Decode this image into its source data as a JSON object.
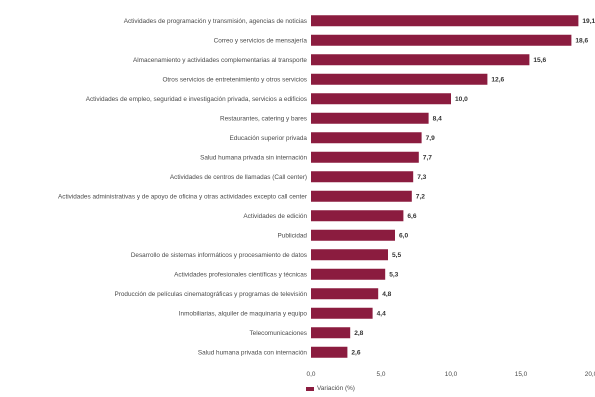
{
  "chart_data": {
    "type": "bar",
    "orientation": "horizontal",
    "categories": [
      "Actividades de programación y transmisión,  agencias de noticias",
      "Correo y servicios de mensajería",
      "Almacenamiento y actividades complementarias al transporte",
      "Otros servicios de entretenimiento y otros servicios",
      "Actividades de empleo, seguridad e investigación privada, servicios a edificios",
      "Restaurantes, catering y bares",
      "Educación superior privada",
      "Salud humana privada sin internación",
      "Actividades de centros de llamadas (Call center)",
      "Actividades administrativas y de apoyo de oficina y otras actividades excepto call center",
      "Actividades de edición",
      "Publicidad",
      "Desarrollo de sistemas informáticos y procesamiento de datos",
      "Actividades profesionales científicas y técnicas",
      "Producción de películas cinematográficas y programas de televisión",
      "Inmobiliarias, alquiler de maquinaria y equipo",
      "Telecomunicaciones",
      "Salud humana privada con internación"
    ],
    "series": [
      {
        "name": "Variación (%)",
        "values": [
          19.1,
          18.6,
          15.6,
          12.6,
          10.0,
          8.4,
          7.9,
          7.7,
          7.3,
          7.2,
          6.6,
          6.0,
          5.5,
          5.3,
          4.8,
          4.4,
          2.8,
          2.6
        ],
        "labels": [
          "19,1",
          "18,6",
          "15,6",
          "12,6",
          "10,0",
          "8,4",
          "7,9",
          "7,7",
          "7,3",
          "7,2",
          "6,6",
          "6,0",
          "5,5",
          "5,3",
          "4,8",
          "4,4",
          "2,8",
          "2,6"
        ],
        "color": "#8b1c3f"
      }
    ],
    "xlim": [
      0,
      20
    ],
    "xticks": [
      0,
      5,
      10,
      15,
      20
    ],
    "xtick_labels": [
      "0,0",
      "5,0",
      "10,0",
      "15,0",
      "20,0"
    ],
    "grid": false,
    "legend": "bottom"
  }
}
